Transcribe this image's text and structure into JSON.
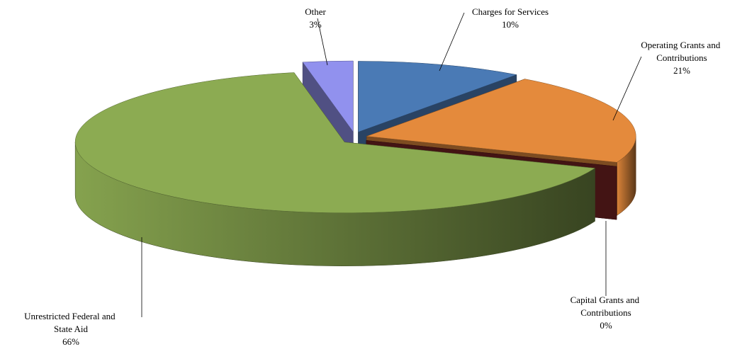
{
  "chart_data": {
    "type": "pie3d",
    "categories": [
      "Charges for Services",
      "Operating Grants and Contributions",
      "Capital Grants and Contributions",
      "Unrestricted Federal and State Aid",
      "Other"
    ],
    "values": [
      10,
      21,
      0,
      66,
      3
    ],
    "value_labels": [
      "10%",
      "21%",
      "0%",
      "66%",
      "3%"
    ],
    "colors": [
      "#4a7ab5",
      "#e48a3c",
      "#7a2424",
      "#8cab52",
      "#9191ee"
    ]
  }
}
